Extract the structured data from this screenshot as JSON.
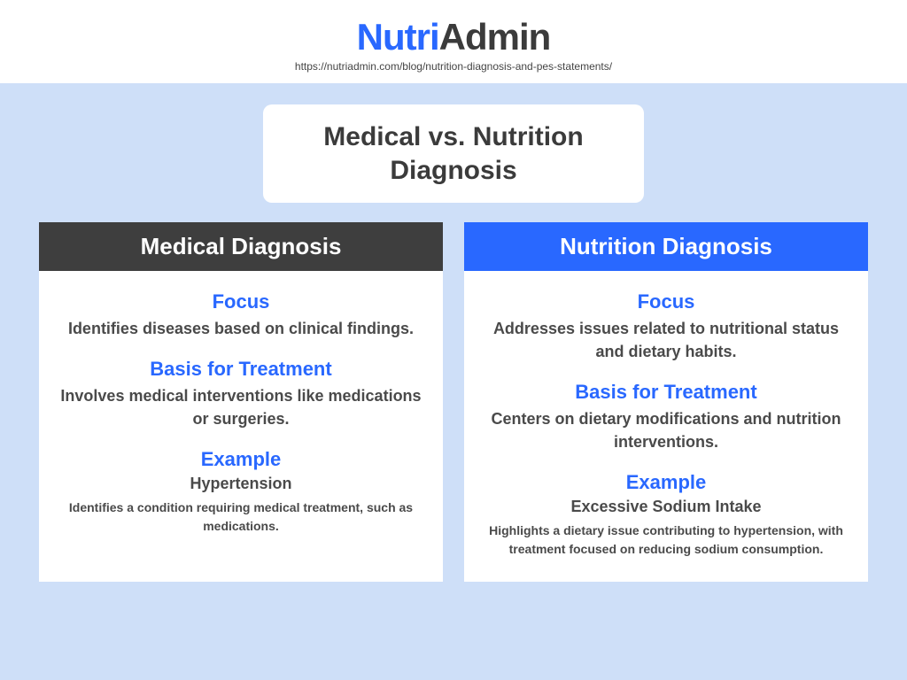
{
  "brand": {
    "part1": "Nutri",
    "part2": "Admin"
  },
  "url": "https://nutriadmin.com/blog/nutrition-diagnosis-and-pes-statements/",
  "title": "Medical vs. Nutrition Diagnosis",
  "colors": {
    "background": "#cedff8",
    "brand_blue": "#2968ff",
    "brand_dark": "#3b3b3b",
    "header_dark": "#3e3e3e",
    "header_blue": "#2968ff",
    "text_body": "#4a4a4a",
    "card_bg": "#ffffff"
  },
  "typography": {
    "brand_fontsize": 42,
    "title_fontsize": 30,
    "col_header_fontsize": 26,
    "label_fontsize": 22,
    "desc_fontsize": 18,
    "example_detail_fontsize": 14
  },
  "columns": [
    {
      "header": "Medical Diagnosis",
      "header_bg": "#3e3e3e",
      "focus_label": "Focus",
      "focus_text": "Identifies diseases based on clinical findings.",
      "basis_label": "Basis for Treatment",
      "basis_text": "Involves medical interventions like medications or surgeries.",
      "example_label": "Example",
      "example_name": "Hypertension",
      "example_detail": "Identifies a condition requiring medical treatment, such as medications."
    },
    {
      "header": "Nutrition Diagnosis",
      "header_bg": "#2968ff",
      "focus_label": "Focus",
      "focus_text": "Addresses issues related to nutritional status and dietary habits.",
      "basis_label": "Basis for Treatment",
      "basis_text": "Centers on dietary modifications and nutrition interventions.",
      "example_label": "Example",
      "example_name": "Excessive Sodium Intake",
      "example_detail": "Highlights a dietary issue contributing to hypertension, with treatment focused on reducing sodium consumption."
    }
  ]
}
